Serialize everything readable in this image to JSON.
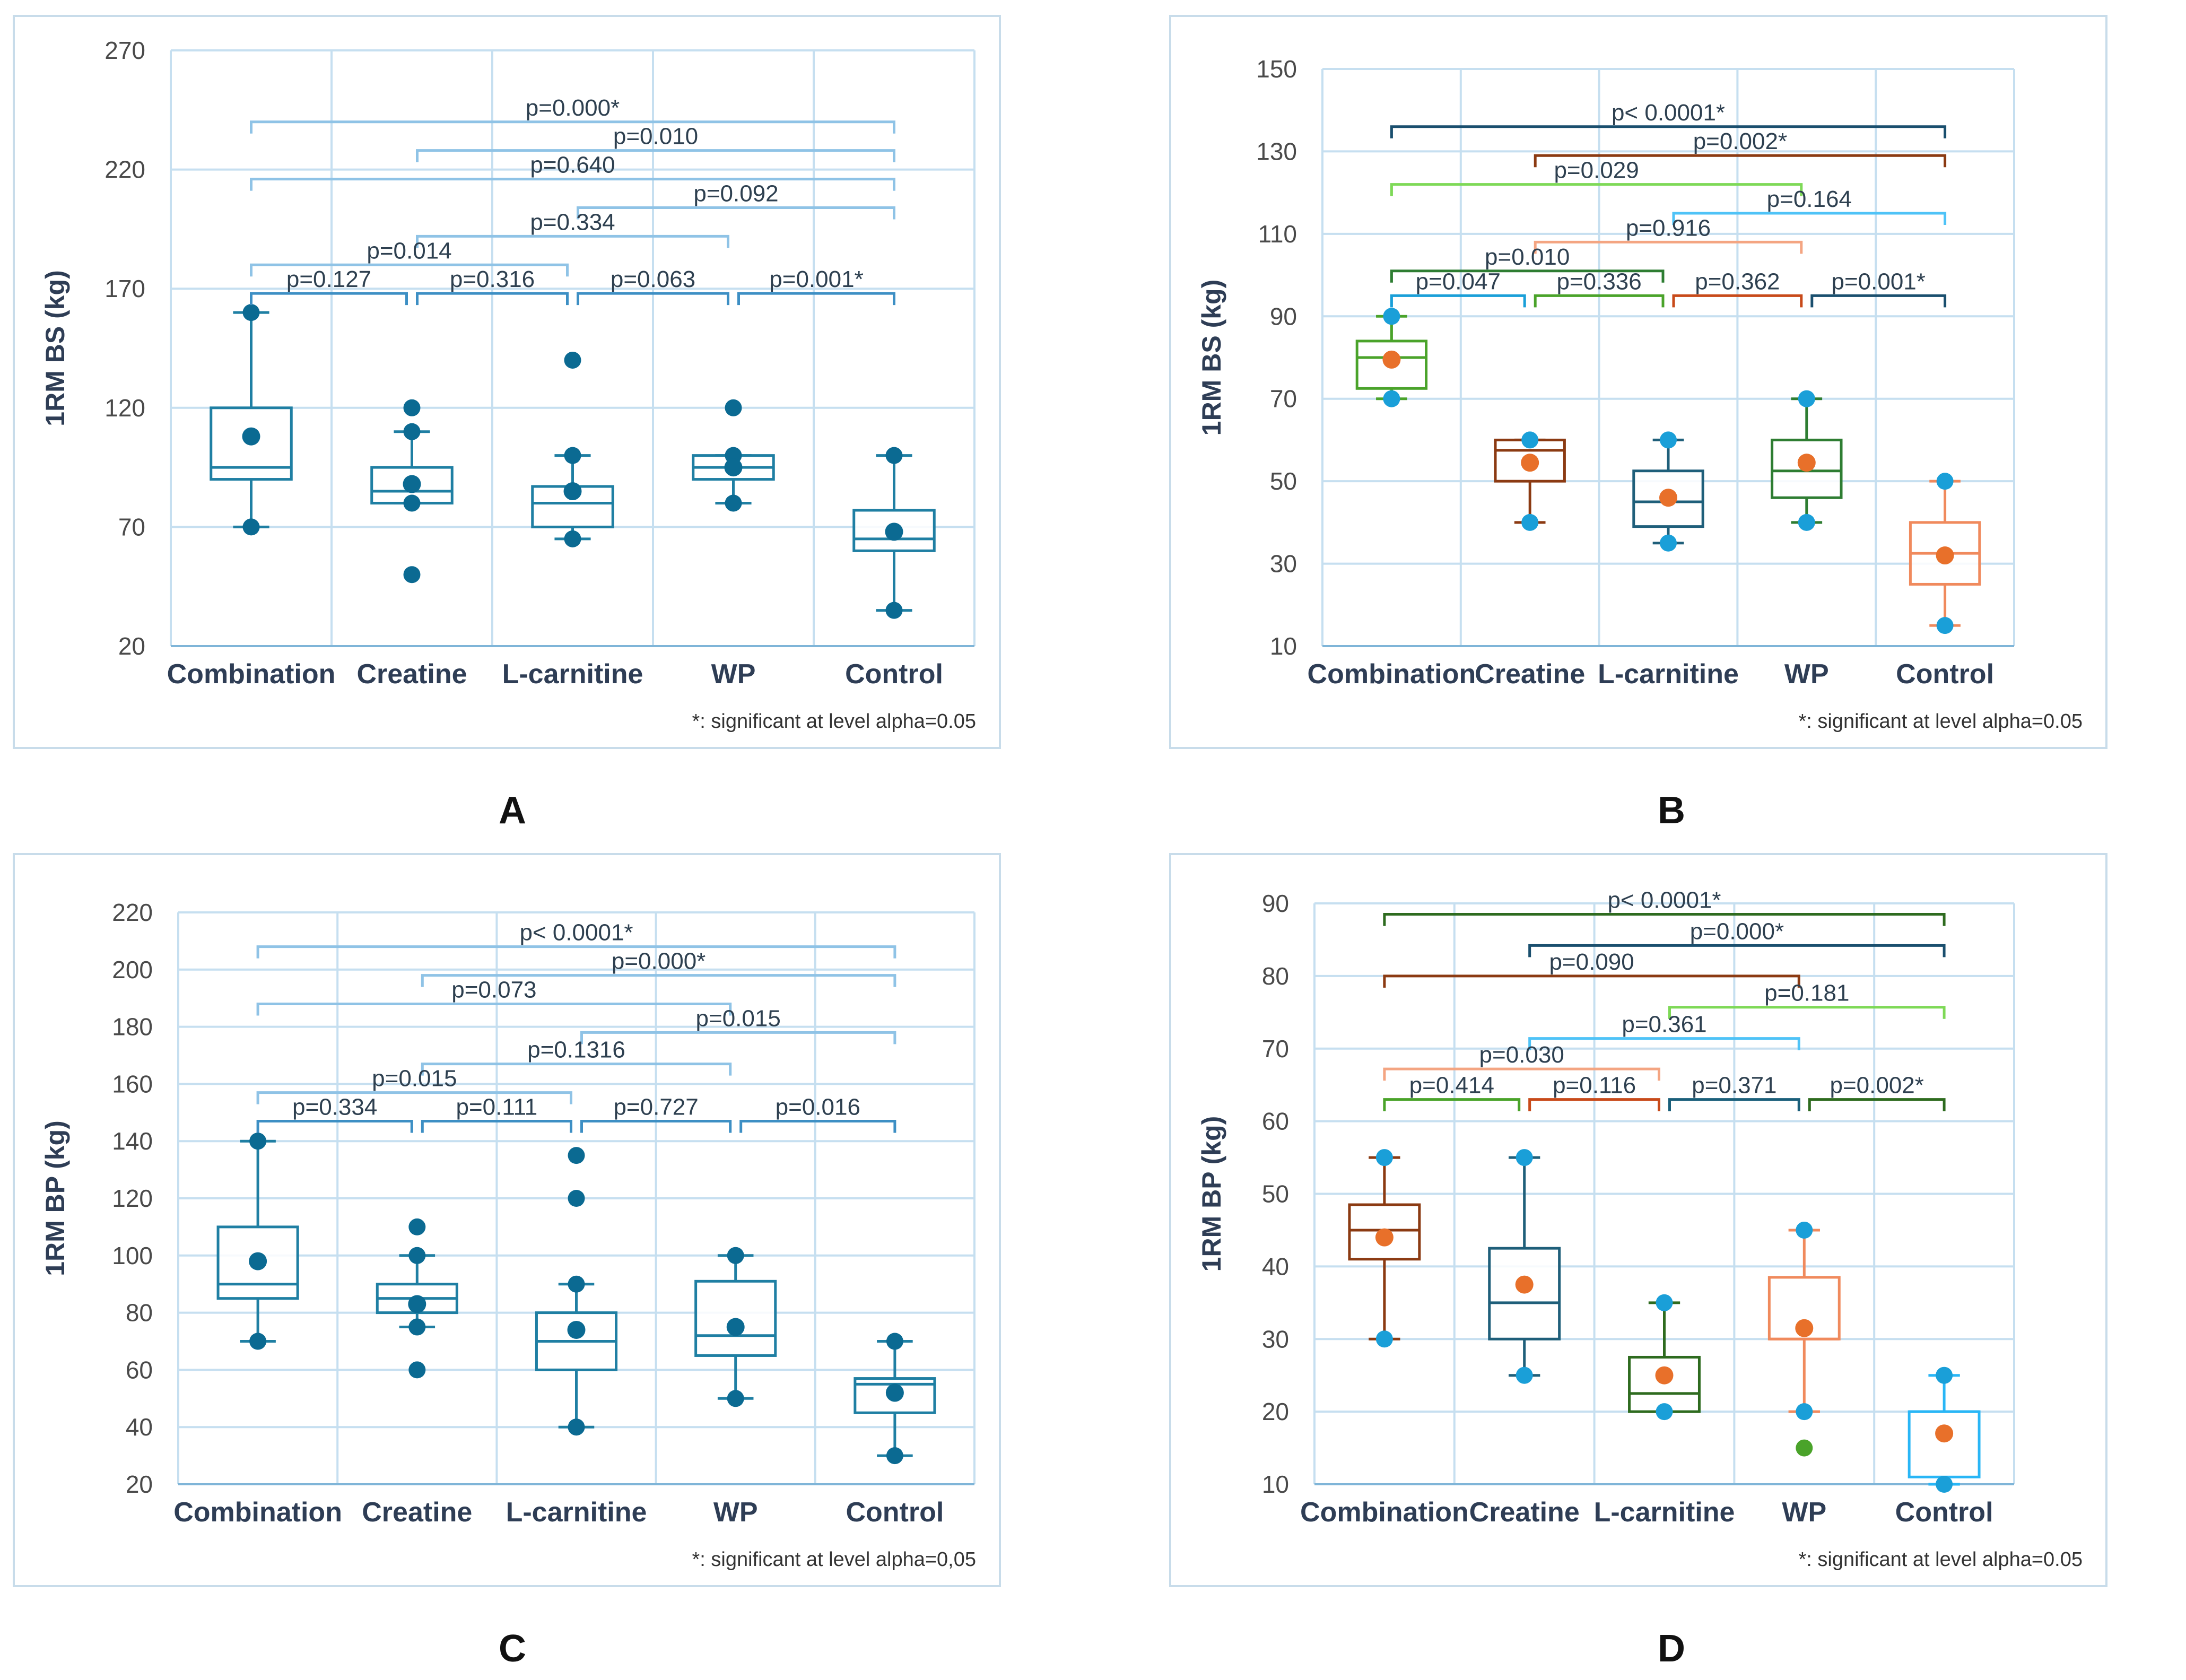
{
  "figure": {
    "panels": [
      "A",
      "B",
      "C",
      "D"
    ]
  },
  "chart_data": [
    {
      "type": "box",
      "panel": "A",
      "ylabel": "1RM BS (kg)",
      "ylim": [
        20,
        270
      ],
      "yticks": [
        20,
        70,
        120,
        170,
        220,
        270
      ],
      "categories": [
        "Combination",
        "Creatine",
        "L-carnitine",
        "WP",
        "Control"
      ],
      "note": "*: significant at level alpha=0.05",
      "boxes": [
        {
          "min": 70,
          "q1": 90,
          "median": 95,
          "q3": 120,
          "max": 160,
          "mean": 108,
          "outliers": [],
          "color": "#1f7fa3",
          "mean_color": "#0b6a92",
          "extreme_color": "#0b6a92"
        },
        {
          "min": 80,
          "q1": 80,
          "median": 85,
          "q3": 95,
          "max": 110,
          "mean": 88,
          "outliers": [
            120,
            50
          ],
          "color": "#1f7fa3",
          "mean_color": "#0b6a92",
          "extreme_color": "#0b6a92"
        },
        {
          "min": 65,
          "q1": 70,
          "median": 80,
          "q3": 87,
          "max": 100,
          "mean": 85,
          "outliers": [
            140
          ],
          "color": "#1f7fa3",
          "mean_color": "#0b6a92",
          "extreme_color": "#0b6a92"
        },
        {
          "min": 80,
          "q1": 90,
          "median": 95,
          "q3": 100,
          "max": 100,
          "mean": 95,
          "outliers": [
            120
          ],
          "color": "#1f7fa3",
          "mean_color": "#0b6a92",
          "extreme_color": "#0b6a92"
        },
        {
          "min": 35,
          "q1": 60,
          "median": 65,
          "q3": 77,
          "max": 100,
          "mean": 68,
          "outliers": [],
          "color": "#1f7fa3",
          "mean_color": "#0b6a92",
          "extreme_color": "#0b6a92"
        }
      ],
      "comparisons": [
        {
          "from": 0,
          "to": 4,
          "y": 240,
          "p": "p=0.000*",
          "color": "#8fc3e6"
        },
        {
          "from": 1,
          "to": 4,
          "y": 228,
          "p": "p=0.010",
          "color": "#8fc3e6"
        },
        {
          "from": 0,
          "to": 4,
          "y": 216,
          "p": "p=0.640",
          "color": "#8fc3e6"
        },
        {
          "from": 2,
          "to": 4,
          "y": 204,
          "p": "p=0.092",
          "color": "#8fc3e6"
        },
        {
          "from": 1,
          "to": 3,
          "y": 192,
          "p": "p=0.334",
          "color": "#8fc3e6"
        },
        {
          "from": 0,
          "to": 2,
          "y": 180,
          "p": "p=0.014",
          "color": "#8fc3e6"
        },
        {
          "from": 0,
          "to": 1,
          "y": 168,
          "p": "p=0.127",
          "color": "#3d8fc4"
        },
        {
          "from": 1,
          "to": 2,
          "y": 168,
          "p": "p=0.316",
          "color": "#3d8fc4"
        },
        {
          "from": 2,
          "to": 3,
          "y": 168,
          "p": "p=0.063",
          "color": "#3d8fc4"
        },
        {
          "from": 3,
          "to": 4,
          "y": 168,
          "p": "p=0.001*",
          "color": "#3d8fc4"
        }
      ]
    },
    {
      "type": "box",
      "panel": "B",
      "ylabel": "1RM BS (kg)",
      "ylim": [
        10,
        150
      ],
      "yticks": [
        10,
        30,
        50,
        70,
        90,
        110,
        130,
        150
      ],
      "categories": [
        "Combination",
        "Creatine",
        "L-carnitine",
        "WP",
        "Control"
      ],
      "note": "*: significant at level alpha=0.05",
      "boxes": [
        {
          "min": 70,
          "q1": 72.5,
          "median": 80,
          "q3": 84,
          "max": 90,
          "mean": 79.5,
          "outliers": [],
          "color": "#4aa32a",
          "mean_color": "#e8702a",
          "extreme_color": "#1a9fd8"
        },
        {
          "min": 40,
          "q1": 50,
          "median": 57.5,
          "q3": 60,
          "max": 60,
          "mean": 54.5,
          "outliers": [],
          "color": "#8b3a12",
          "mean_color": "#e8702a",
          "extreme_color": "#1a9fd8"
        },
        {
          "min": 35,
          "q1": 39,
          "median": 45,
          "q3": 52.5,
          "max": 60,
          "mean": 46,
          "outliers": [],
          "color": "#1f5f7a",
          "mean_color": "#e8702a",
          "extreme_color": "#1a9fd8"
        },
        {
          "min": 40,
          "q1": 46,
          "median": 52.5,
          "q3": 60,
          "max": 70,
          "mean": 54.5,
          "outliers": [],
          "color": "#2e7d32",
          "mean_color": "#e8702a",
          "extreme_color": "#1a9fd8"
        },
        {
          "min": 15,
          "q1": 25,
          "median": 32.5,
          "q3": 40,
          "max": 50,
          "mean": 32,
          "outliers": [],
          "color": "#f08a5d",
          "mean_color": "#e8702a",
          "extreme_color": "#1a9fd8"
        }
      ],
      "comparisons": [
        {
          "from": 0,
          "to": 4,
          "y": 136,
          "p": "p< 0.0001*",
          "color": "#1a4f6e"
        },
        {
          "from": 1,
          "to": 4,
          "y": 129,
          "p": "p=0.002*",
          "color": "#8b3a12"
        },
        {
          "from": 0,
          "to": 3,
          "y": 122,
          "p": "p=0.029",
          "color": "#7ed957"
        },
        {
          "from": 2,
          "to": 4,
          "y": 115,
          "p": "p=0.164",
          "color": "#4fc3f7"
        },
        {
          "from": 1,
          "to": 3,
          "y": 108,
          "p": "p=0.916",
          "color": "#f4a582"
        },
        {
          "from": 0,
          "to": 2,
          "y": 101,
          "p": "p=0.010",
          "color": "#2e7d32"
        },
        {
          "from": 0,
          "to": 1,
          "y": 95,
          "p": "p=0.047",
          "color": "#1a9fd8"
        },
        {
          "from": 1,
          "to": 2,
          "y": 95,
          "p": "p=0.336",
          "color": "#4aa32a"
        },
        {
          "from": 2,
          "to": 3,
          "y": 95,
          "p": "p=0.362",
          "color": "#c84a1a"
        },
        {
          "from": 3,
          "to": 4,
          "y": 95,
          "p": "p=0.001*",
          "color": "#1a4f6e"
        }
      ]
    },
    {
      "type": "box",
      "panel": "C",
      "ylabel": "1RM BP (kg)",
      "ylim": [
        20,
        220
      ],
      "yticks": [
        20,
        40,
        60,
        80,
        100,
        120,
        140,
        160,
        180,
        200,
        220
      ],
      "categories": [
        "Combination",
        "Creatine",
        "L-carnitine",
        "WP",
        "Control"
      ],
      "note": "*: significant at level alpha=0,05",
      "boxes": [
        {
          "min": 70,
          "q1": 85,
          "median": 90,
          "q3": 110,
          "max": 140,
          "mean": 98,
          "outliers": [],
          "color": "#1f7fa3",
          "mean_color": "#0b6a92",
          "extreme_color": "#0b6a92"
        },
        {
          "min": 75,
          "q1": 80,
          "median": 85,
          "q3": 90,
          "max": 100,
          "mean": 83,
          "outliers": [
            110,
            60
          ],
          "color": "#1f7fa3",
          "mean_color": "#0b6a92",
          "extreme_color": "#0b6a92"
        },
        {
          "min": 40,
          "q1": 60,
          "median": 70,
          "q3": 80,
          "max": 90,
          "mean": 74,
          "outliers": [
            135,
            120
          ],
          "color": "#1f7fa3",
          "mean_color": "#0b6a92",
          "extreme_color": "#0b6a92"
        },
        {
          "min": 50,
          "q1": 65,
          "median": 72,
          "q3": 91,
          "max": 100,
          "mean": 75,
          "outliers": [],
          "color": "#1f7fa3",
          "mean_color": "#0b6a92",
          "extreme_color": "#0b6a92"
        },
        {
          "min": 30,
          "q1": 45,
          "median": 55,
          "q3": 57,
          "max": 70,
          "mean": 52,
          "outliers": [],
          "color": "#1f7fa3",
          "mean_color": "#0b6a92",
          "extreme_color": "#0b6a92"
        }
      ],
      "comparisons": [
        {
          "from": 0,
          "to": 4,
          "y": 208,
          "p": "p< 0.0001*",
          "color": "#8fc3e6"
        },
        {
          "from": 1,
          "to": 4,
          "y": 198,
          "p": "p=0.000*",
          "color": "#8fc3e6"
        },
        {
          "from": 0,
          "to": 3,
          "y": 188,
          "p": "p=0.073",
          "color": "#8fc3e6"
        },
        {
          "from": 2,
          "to": 4,
          "y": 178,
          "p": "p=0.015",
          "color": "#8fc3e6"
        },
        {
          "from": 1,
          "to": 3,
          "y": 167,
          "p": "p=0.1316",
          "color": "#8fc3e6"
        },
        {
          "from": 0,
          "to": 2,
          "y": 157,
          "p": "p=0.015",
          "color": "#8fc3e6"
        },
        {
          "from": 0,
          "to": 1,
          "y": 147,
          "p": "p=0.334",
          "color": "#3d8fc4"
        },
        {
          "from": 1,
          "to": 2,
          "y": 147,
          "p": "p=0.111",
          "color": "#3d8fc4"
        },
        {
          "from": 2,
          "to": 3,
          "y": 147,
          "p": "p=0.727",
          "color": "#3d8fc4"
        },
        {
          "from": 3,
          "to": 4,
          "y": 147,
          "p": "p=0.016",
          "color": "#3d8fc4"
        }
      ]
    },
    {
      "type": "box",
      "panel": "D",
      "ylabel": "1RM BP (kg)",
      "ylim": [
        10,
        90
      ],
      "yticks": [
        10,
        20,
        30,
        40,
        50,
        60,
        70,
        80,
        90
      ],
      "categories": [
        "Combination",
        "Creatine",
        "L-carnitine",
        "WP",
        "Control"
      ],
      "note": "*: significant at level alpha=0.05",
      "boxes": [
        {
          "min": 30,
          "q1": 41,
          "median": 45,
          "q3": 48.5,
          "max": 55,
          "mean": 44,
          "outliers": [],
          "color": "#8b3a12",
          "mean_color": "#e8702a",
          "extreme_color": "#1a9fd8"
        },
        {
          "min": 25,
          "q1": 30,
          "median": 35,
          "q3": 42.5,
          "max": 55,
          "mean": 37.5,
          "outliers": [],
          "color": "#1f5f7a",
          "mean_color": "#e8702a",
          "extreme_color": "#1a9fd8"
        },
        {
          "min": 20,
          "q1": 20,
          "median": 22.5,
          "q3": 27.5,
          "max": 35,
          "mean": 25,
          "outliers": [],
          "color": "#2e6b1f",
          "mean_color": "#e8702a",
          "extreme_color": "#1a9fd8"
        },
        {
          "min": 20,
          "q1": 30,
          "median": 30,
          "q3": 38.5,
          "max": 45,
          "mean": 31.5,
          "outliers": [
            15
          ],
          "color": "#f08a5d",
          "mean_color": "#e8702a",
          "extreme_color": "#1a9fd8",
          "outlier_color": "#4aa32a"
        },
        {
          "min": 10,
          "q1": 11,
          "median": 20,
          "q3": 20,
          "max": 25,
          "mean": 17,
          "outliers": [],
          "color": "#29b6f6",
          "mean_color": "#e8702a",
          "extreme_color": "#1a9fd8"
        }
      ],
      "comparisons": [
        {
          "from": 0,
          "to": 4,
          "y": 88.5,
          "p": "p< 0.0001*",
          "color": "#2e6b1f"
        },
        {
          "from": 1,
          "to": 4,
          "y": 84.2,
          "p": "p=0.000*",
          "color": "#1a4f6e"
        },
        {
          "from": 0,
          "to": 3,
          "y": 80,
          "p": "p=0.090",
          "color": "#8b3a12"
        },
        {
          "from": 2,
          "to": 4,
          "y": 75.7,
          "p": "p=0.181",
          "color": "#7ed957"
        },
        {
          "from": 1,
          "to": 3,
          "y": 71.4,
          "p": "p=0.361",
          "color": "#4fc3f7"
        },
        {
          "from": 0,
          "to": 2,
          "y": 67.2,
          "p": "p=0.030",
          "color": "#f4a582"
        },
        {
          "from": 0,
          "to": 1,
          "y": 63,
          "p": "p=0.414",
          "color": "#4aa32a"
        },
        {
          "from": 1,
          "to": 2,
          "y": 63,
          "p": "p=0.116",
          "color": "#c84a1a"
        },
        {
          "from": 2,
          "to": 3,
          "y": 63,
          "p": "p=0.371",
          "color": "#1a5f7a"
        },
        {
          "from": 3,
          "to": 4,
          "y": 63,
          "p": "p=0.002*",
          "color": "#2e6b1f"
        }
      ]
    }
  ]
}
